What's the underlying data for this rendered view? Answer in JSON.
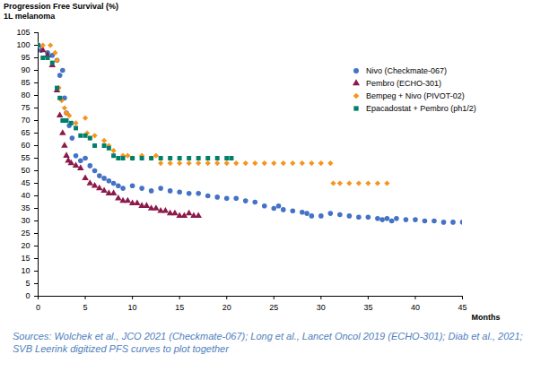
{
  "chart_data": {
    "type": "scatter",
    "title": "Progression Free Survival (%)",
    "subtitle": "1L melanoma",
    "x_label": "Months",
    "caption": "Sources: Wolchek et al., JCO 2021 (Checkmate-067); Long et al., Lancet Oncol 2019 (ECHO-301); Diab et al., 2021; SVB Leerink digitized PFS curves to plot together",
    "xlim": [
      0,
      45
    ],
    "xticks": [
      0,
      5,
      10,
      15,
      20,
      25,
      30,
      35,
      40,
      45
    ],
    "ylim": [
      0,
      105
    ],
    "yticks": [
      0,
      5,
      10,
      15,
      20,
      25,
      30,
      35,
      40,
      45,
      50,
      55,
      60,
      65,
      70,
      75,
      80,
      85,
      90,
      95,
      100,
      105
    ],
    "grid": false,
    "legend": "upper right",
    "series": [
      {
        "name": "Nivo (Checkmate-067)",
        "color": "#4472c4",
        "marker": "circle",
        "x": [
          0,
          0.3,
          1.0,
          1.5,
          2.0,
          2.3,
          2.6,
          2.8,
          3.0,
          3.3,
          3.6,
          4.0,
          4.5,
          5.0,
          5.5,
          6.0,
          6.5,
          7.0,
          7.5,
          8.0,
          8.5,
          9.0,
          10,
          11,
          12,
          13,
          14,
          15,
          16,
          17,
          18,
          19,
          20,
          21,
          22,
          23,
          24,
          25,
          25.5,
          26,
          27,
          28,
          28.5,
          29,
          30,
          31,
          32,
          33,
          34,
          35,
          36,
          36.5,
          37,
          37.5,
          38,
          39,
          40,
          41,
          42,
          43,
          44,
          45
        ],
        "values": [
          100,
          98,
          97,
          96,
          94,
          88,
          90,
          79,
          73,
          68,
          63,
          56,
          54,
          55,
          52,
          50,
          48,
          47,
          46,
          45,
          44,
          43,
          44,
          43,
          42,
          43,
          42,
          41.5,
          41,
          41,
          40,
          39.5,
          39,
          39,
          38,
          37.5,
          36,
          35,
          36,
          34.5,
          34,
          33.5,
          33,
          32,
          32,
          33,
          32.5,
          32,
          31.5,
          31.5,
          31,
          30.5,
          31,
          30,
          31,
          30.5,
          30.5,
          30,
          30,
          29.5,
          29.5,
          29.5
        ]
      },
      {
        "name": "Pembro (ECHO-301)",
        "color": "#8b1a4a",
        "marker": "triangle",
        "x": [
          0,
          0.5,
          1,
          1.5,
          2,
          2.3,
          2.6,
          2.8,
          3,
          3.2,
          3.5,
          4,
          4.5,
          5,
          5.5,
          6,
          6.5,
          7,
          7.5,
          8,
          8.5,
          9,
          9.5,
          10,
          10.5,
          11,
          11.5,
          12,
          12.5,
          13,
          13.5,
          14,
          14.5,
          15,
          15.5,
          16,
          16.5,
          17
        ],
        "values": [
          100,
          98,
          96,
          92,
          82,
          72,
          65,
          60,
          56,
          54,
          53,
          52,
          51,
          47,
          45,
          44,
          43,
          42,
          41,
          41,
          39,
          38,
          38,
          37,
          37,
          36,
          36,
          35,
          35,
          34,
          34,
          33,
          33,
          32,
          32,
          33,
          32,
          32
        ]
      },
      {
        "name": "Bempeg + Nivo (PIVOT-02)",
        "color": "#f7941d",
        "marker": "diamond",
        "x": [
          0,
          0.5,
          1.3,
          1.8,
          2,
          2.2,
          2.5,
          2.8,
          3,
          3.3,
          4,
          5,
          5.2,
          5.5,
          6,
          7,
          7.5,
          8,
          9,
          9.5,
          10,
          11,
          12,
          12.5,
          13,
          14,
          15,
          16,
          17,
          18,
          19,
          20,
          21,
          22,
          23,
          24,
          25,
          26,
          27,
          28,
          29,
          30,
          31,
          31.3,
          32,
          33,
          34,
          35,
          36,
          37
        ],
        "values": [
          100,
          100,
          100,
          97,
          94,
          83,
          78,
          75,
          73,
          72,
          69,
          71,
          65,
          63,
          64,
          62,
          60,
          58,
          56,
          56,
          55,
          56,
          55,
          56,
          53,
          53,
          53,
          53,
          53,
          53,
          53,
          53,
          53,
          53,
          53,
          53,
          53,
          53,
          53,
          53,
          53,
          53,
          53,
          45,
          45,
          45,
          45,
          45,
          45,
          45
        ]
      },
      {
        "name": "Epacadostat + Pembro (ph1/2)",
        "color": "#00806b",
        "marker": "square",
        "x": [
          0,
          0.5,
          1,
          1.5,
          2,
          2.3,
          2.6,
          3,
          3.5,
          4,
          4.5,
          5,
          5.5,
          6,
          7,
          7.5,
          8,
          8.5,
          9,
          10,
          11,
          12,
          13,
          14,
          15,
          16,
          17,
          18,
          19,
          20,
          20.5
        ],
        "values": [
          100,
          95,
          95,
          93,
          83,
          79,
          70,
          70,
          69,
          67,
          64,
          64,
          63,
          60,
          60,
          59,
          56,
          55,
          55,
          55,
          55,
          55,
          55,
          55,
          55,
          55,
          55,
          55,
          55,
          55,
          55
        ]
      }
    ]
  }
}
